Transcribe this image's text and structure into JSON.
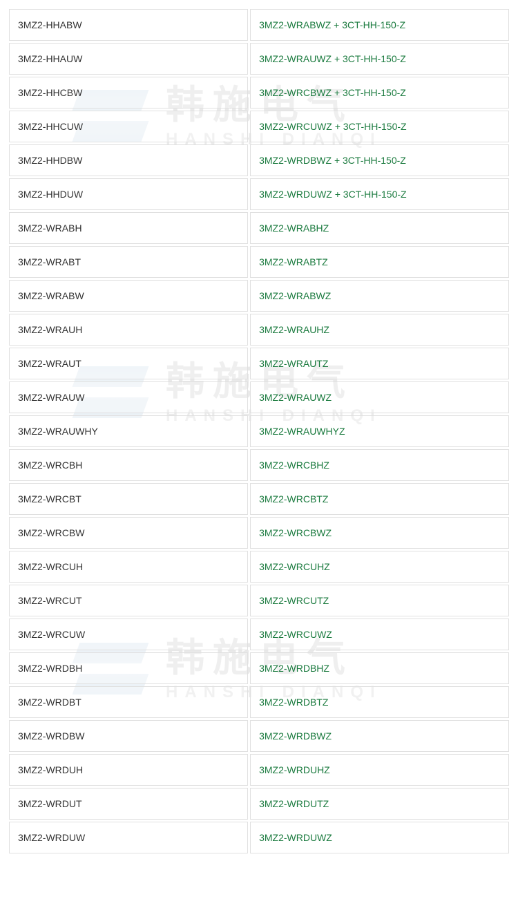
{
  "table": {
    "rows": [
      {
        "left": "3MZ2-HHABW",
        "right": "3MZ2-WRABWZ + 3CT-HH-150-Z"
      },
      {
        "left": "3MZ2-HHAUW",
        "right": "3MZ2-WRAUWZ + 3CT-HH-150-Z"
      },
      {
        "left": "3MZ2-HHCBW",
        "right": "3MZ2-WRCBWZ + 3CT-HH-150-Z"
      },
      {
        "left": "3MZ2-HHCUW",
        "right": "3MZ2-WRCUWZ + 3CT-HH-150-Z"
      },
      {
        "left": "3MZ2-HHDBW",
        "right": "3MZ2-WRDBWZ + 3CT-HH-150-Z"
      },
      {
        "left": "3MZ2-HHDUW",
        "right": "3MZ2-WRDUWZ + 3CT-HH-150-Z"
      },
      {
        "left": "3MZ2-WRABH",
        "right": "3MZ2-WRABHZ"
      },
      {
        "left": "3MZ2-WRABT",
        "right": "3MZ2-WRABTZ"
      },
      {
        "left": "3MZ2-WRABW",
        "right": "3MZ2-WRABWZ"
      },
      {
        "left": "3MZ2-WRAUH",
        "right": "3MZ2-WRAUHZ"
      },
      {
        "left": "3MZ2-WRAUT",
        "right": "3MZ2-WRAUTZ"
      },
      {
        "left": "3MZ2-WRAUW",
        "right": "3MZ2-WRAUWZ"
      },
      {
        "left": "3MZ2-WRAUWHY",
        "right": "3MZ2-WRAUWHYZ"
      },
      {
        "left": "3MZ2-WRCBH",
        "right": "3MZ2-WRCBHZ"
      },
      {
        "left": "3MZ2-WRCBT",
        "right": "3MZ2-WRCBTZ"
      },
      {
        "left": "3MZ2-WRCBW",
        "right": "3MZ2-WRCBWZ"
      },
      {
        "left": "3MZ2-WRCUH",
        "right": "3MZ2-WRCUHZ"
      },
      {
        "left": "3MZ2-WRCUT",
        "right": "3MZ2-WRCUTZ"
      },
      {
        "left": "3MZ2-WRCUW",
        "right": "3MZ2-WRCUWZ"
      },
      {
        "left": "3MZ2-WRDBH",
        "right": "3MZ2-WRDBHZ"
      },
      {
        "left": "3MZ2-WRDBT",
        "right": "3MZ2-WRDBTZ"
      },
      {
        "left": "3MZ2-WRDBW",
        "right": "3MZ2-WRDBWZ"
      },
      {
        "left": "3MZ2-WRDUH",
        "right": "3MZ2-WRDUHZ"
      },
      {
        "left": "3MZ2-WRDUT",
        "right": "3MZ2-WRDUTZ"
      },
      {
        "left": "3MZ2-WRDUW",
        "right": "3MZ2-WRDUWZ"
      }
    ]
  },
  "watermark": {
    "cn": "韩施电气",
    "en": "HANSHI DIANQI"
  },
  "colors": {
    "left_text": "#333333",
    "right_text": "#1a7a3e",
    "border": "#e0e0e0",
    "background": "#ffffff"
  }
}
